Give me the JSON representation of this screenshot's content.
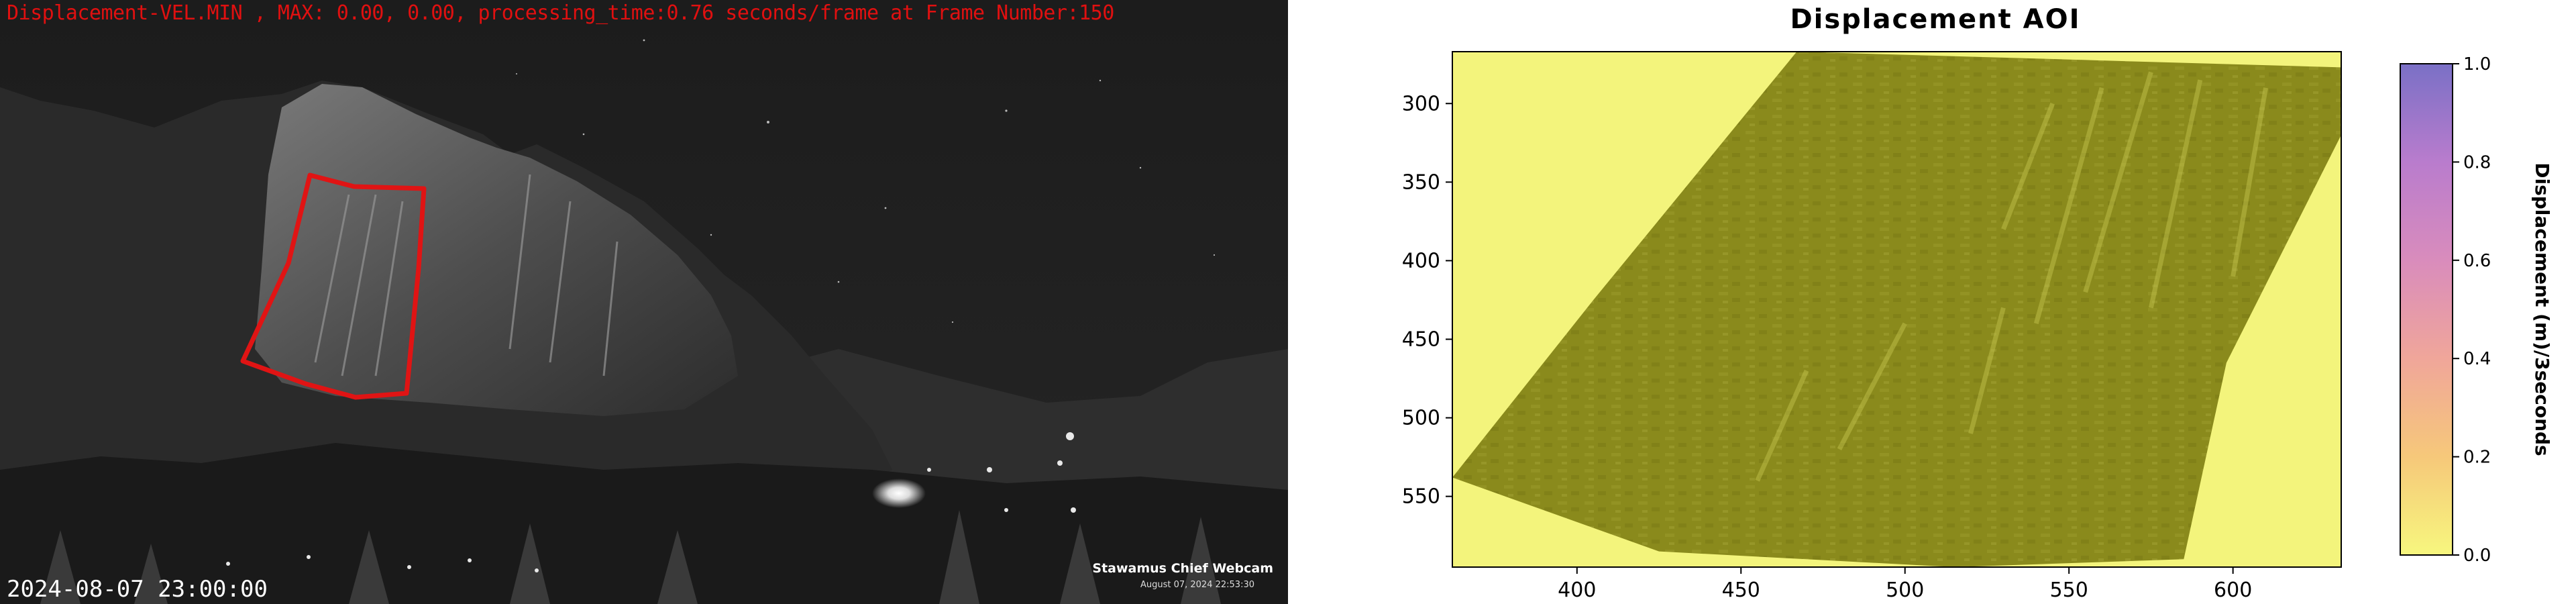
{
  "webcam": {
    "status_text": "Displacement-VEL.MIN , MAX: 0.00, 0.00, processing_time:0.76 seconds/frame at Frame Number:150",
    "timestamp": "2024-08-07 23:00:00",
    "watermark_title": "Stawamus Chief Webcam",
    "watermark_date": "August 07, 2024 22:53:30",
    "aoi_outline_color": "#e01414"
  },
  "chart_data": {
    "type": "heatmap",
    "title": "Displacement AOI",
    "xlabel": "",
    "ylabel": "",
    "x_ticks": [
      400,
      450,
      500,
      550,
      600
    ],
    "y_ticks": [
      300,
      350,
      400,
      450,
      500,
      550
    ],
    "xlim": [
      362,
      633
    ],
    "ylim": [
      595,
      267
    ],
    "image_origin": "upper",
    "displacement_values": {
      "min": 0.0,
      "max": 0.0
    },
    "colorbar": {
      "label": "Displacement (m)/3seconds",
      "min": 0.0,
      "max": 1.0,
      "ticks": [
        0.0,
        0.2,
        0.4,
        0.6,
        0.8,
        1.0
      ],
      "colors": [
        "#f7f77e",
        "#f6c87a",
        "#f0a69a",
        "#d98cbc",
        "#b97ccd",
        "#7a70c6"
      ]
    },
    "aoi_fill_color": "#8b8b1c",
    "background_color": "#f3f47c",
    "grid": false,
    "legend": "colorbar-right"
  }
}
